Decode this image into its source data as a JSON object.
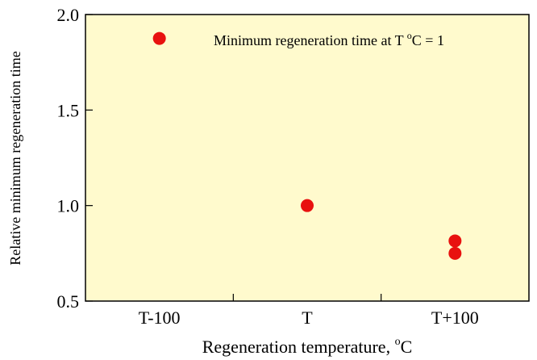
{
  "chart_data": {
    "type": "scatter",
    "title": "",
    "xlabel": "Regeneration temperature, ",
    "xlabel_sup": "o",
    "xlabel_tail": "C",
    "ylabel": "Relative minimum regeneration time",
    "categories": [
      "T-100",
      "T",
      "T+100"
    ],
    "ylim": [
      0.5,
      2.0
    ],
    "yticks": [
      "0.5",
      "1.0",
      "1.5",
      "2.0"
    ],
    "ytick_values": [
      0.5,
      1.0,
      1.5,
      2.0
    ],
    "grid": false,
    "points": [
      {
        "x": "T-100",
        "y": 1.875
      },
      {
        "x": "T",
        "y": 1.0
      },
      {
        "x": "T+100",
        "y": 0.815
      },
      {
        "x": "T+100",
        "y": 0.75
      }
    ],
    "annotation": {
      "text_main": "Minimum regeneration time at T ",
      "text_sup": "o",
      "text_tail": "C = 1"
    },
    "colors": {
      "plot_background": "#FFFACD",
      "marker": "#E8110F",
      "axis": "#000000"
    }
  }
}
